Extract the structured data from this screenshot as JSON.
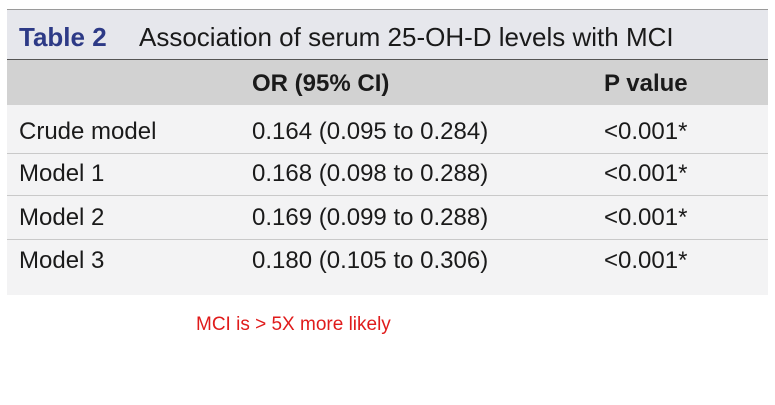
{
  "table": {
    "label": "Table 2",
    "title": "Association of serum 25-OH-D levels with MCI",
    "columns": [
      "",
      "OR (95% CI)",
      "P value"
    ],
    "rows": [
      {
        "model": "Crude model",
        "or_ci": "0.164 (0.095 to 0.284)",
        "p_value": "<0.001*"
      },
      {
        "model": "Model 1",
        "or_ci": "0.168 (0.098 to 0.288)",
        "p_value": "<0.001*"
      },
      {
        "model": "Model 2",
        "or_ci": "0.169 (0.099 to 0.288)",
        "p_value": "<0.001*"
      },
      {
        "model": "Model 3",
        "or_ci": "0.180 (0.105 to 0.306)",
        "p_value": "<0.001*"
      }
    ]
  },
  "annotation": "MCI is > 5X more likely",
  "colors": {
    "caption_bg": "#e6e7ec",
    "caption_label": "#2d3a86",
    "header_bg": "#d2d2d2",
    "body_bg": "#f3f3f4",
    "annotation": "#e01b1b"
  }
}
